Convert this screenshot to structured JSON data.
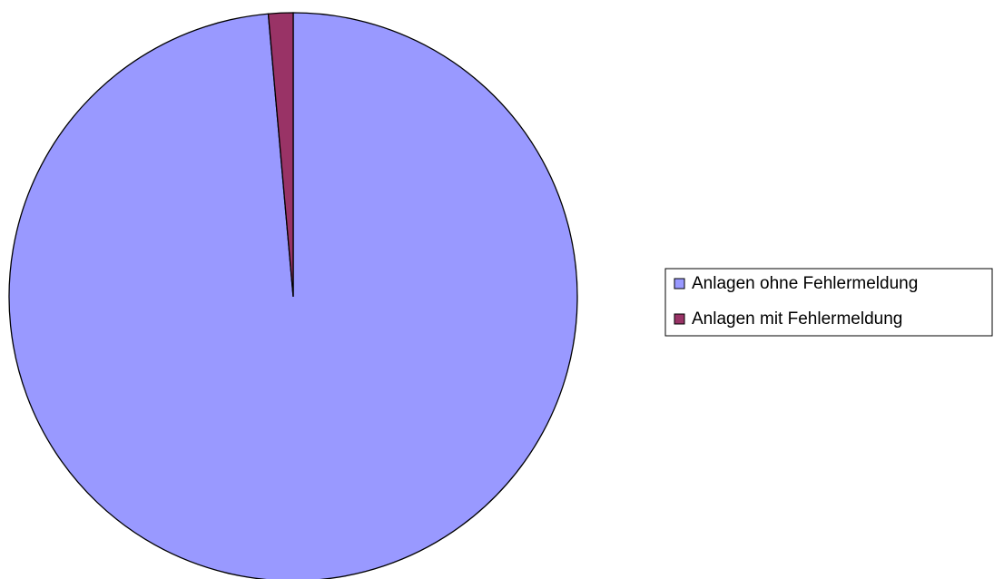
{
  "chart_data": {
    "type": "pie",
    "categories": [
      "Anlagen ohne Fehlermeldung",
      "Anlagen mit Fehlermeldung"
    ],
    "values": [
      98.6,
      1.4
    ],
    "colors": [
      "#9999ff",
      "#993366"
    ],
    "legend": "right"
  }
}
